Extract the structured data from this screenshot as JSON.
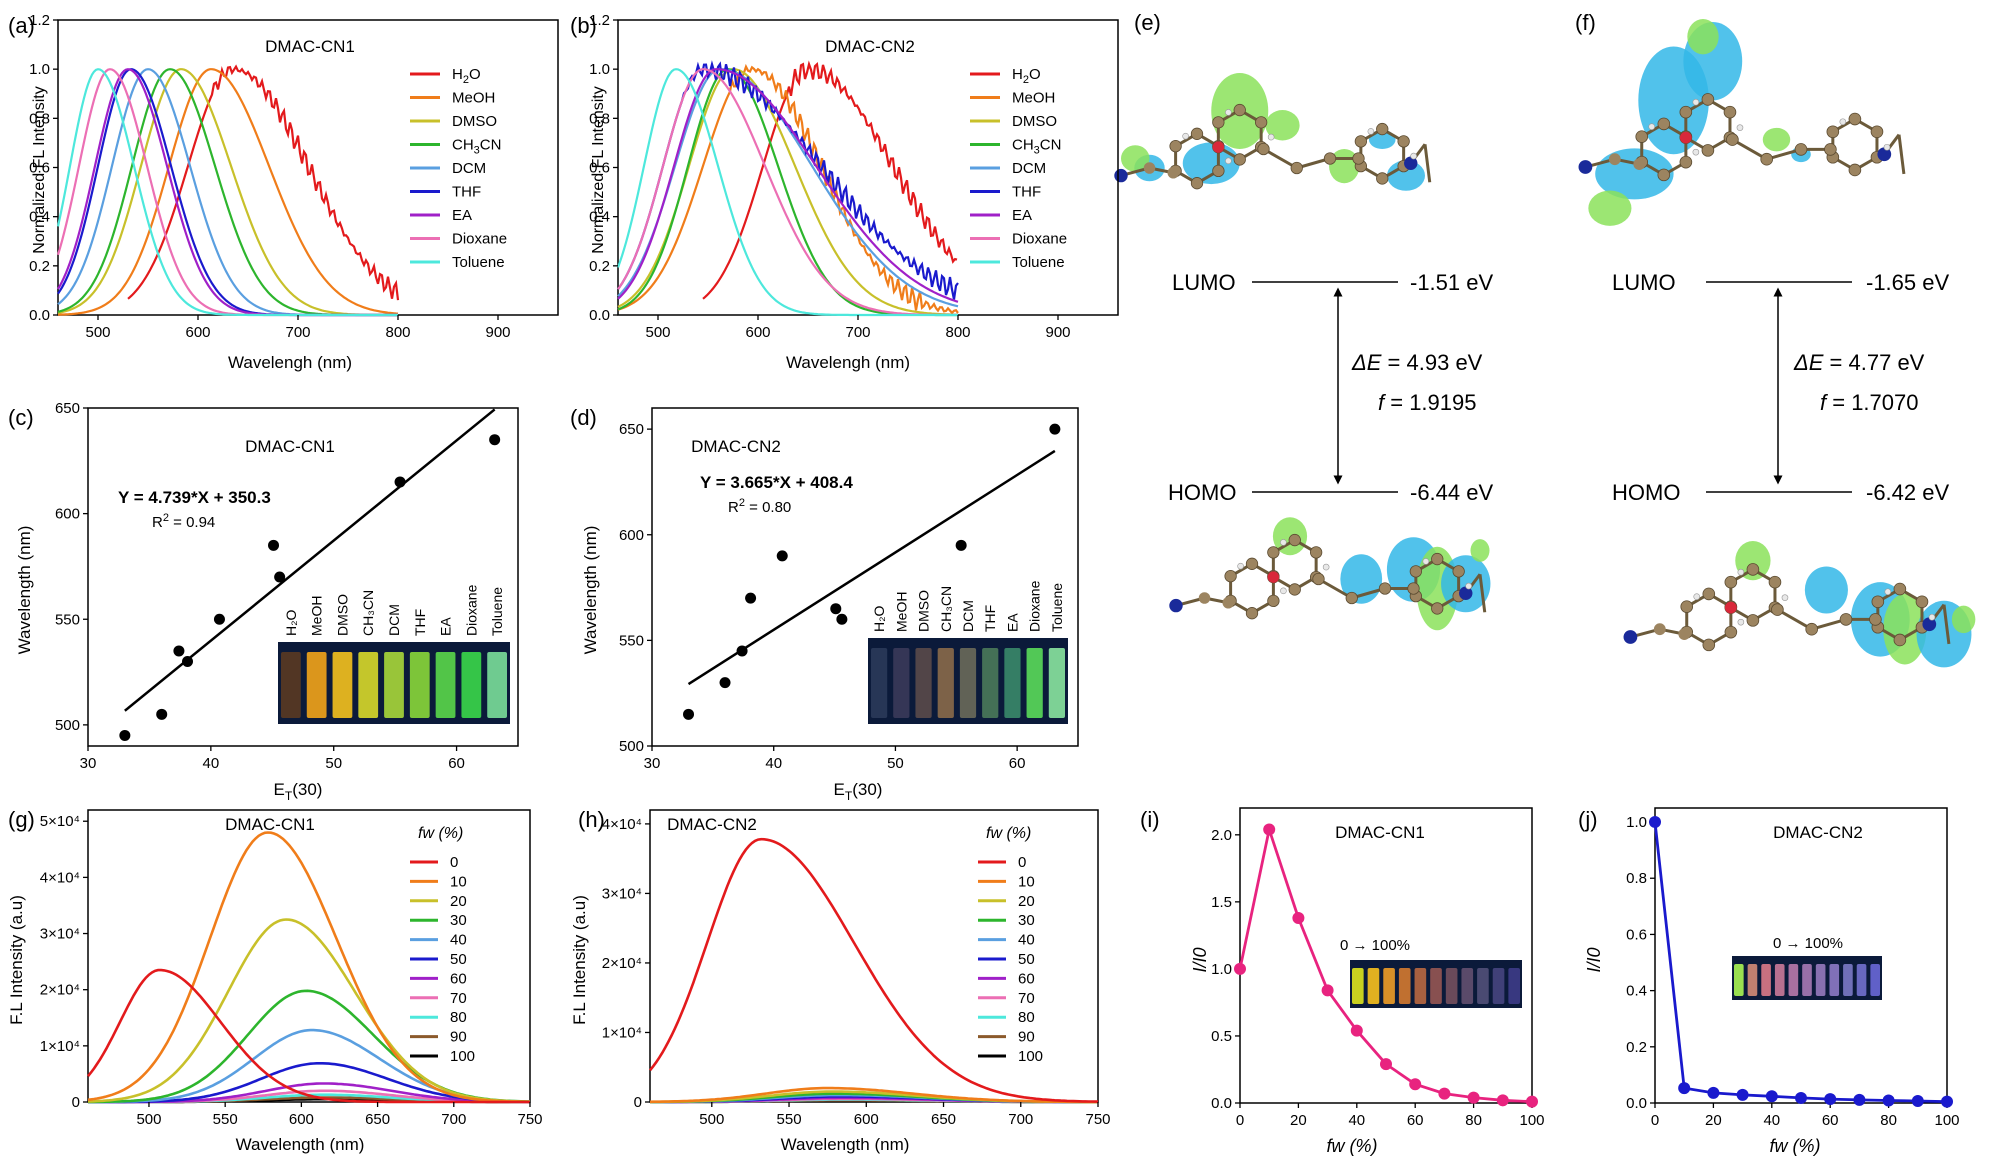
{
  "colors": {
    "H2O": "#e31a1c",
    "MeOH": "#f07d1a",
    "DMSO": "#c8c02a",
    "CH3CN": "#2db52d",
    "DCM": "#5a9fe0",
    "THF": "#1a1acd",
    "EA": "#a020c8",
    "Dioxane": "#ec6fb4",
    "Toluene": "#4de8dc",
    "fit": "#000000",
    "dot": "#000000",
    "i_line": "#e8237f",
    "j_line": "#1a1acd",
    "iso_blue": "#33b7e8",
    "iso_green": "#8be25a"
  },
  "panel_a": {
    "label": "(a)",
    "title": "DMAC-CN1",
    "xlabel": "Wavelengh (nm)",
    "ylabel": "Normalized FL Intensity",
    "xticks": [
      "500",
      "600",
      "700",
      "800",
      "900"
    ],
    "yticks": [
      "0.0",
      "0.2",
      "0.4",
      "0.6",
      "0.8",
      "1.0",
      "1.2"
    ],
    "legend": [
      "H2O",
      "MeOH",
      "DMSO",
      "CH3CN",
      "DCM",
      "THF",
      "EA",
      "Dioxane",
      "Toluene"
    ]
  },
  "panel_b": {
    "label": "(b)",
    "title": "DMAC-CN2",
    "xlabel": "Wavelengh (nm)",
    "ylabel": "Normalized FL Intensity",
    "xticks": [
      "500",
      "600",
      "700",
      "800",
      "900"
    ],
    "yticks": [
      "0.0",
      "0.2",
      "0.4",
      "0.6",
      "0.8",
      "1.0",
      "1.2"
    ],
    "legend": [
      "H2O",
      "MeOH",
      "DMSO",
      "CH3CN",
      "DCM",
      "THF",
      "EA",
      "Dioxane",
      "Toluene"
    ]
  },
  "panel_c": {
    "label": "(c)",
    "title": "DMAC-CN1",
    "equation": "Y = 4.739*X + 350.3",
    "r2": "R",
    "r2_sup": "2",
    "r2_val": " = 0.94",
    "xlabel": "E",
    "xlabel_sub": "T",
    "xlabel_tail": "(30)",
    "ylabel": "Wavelength (nm)",
    "xticks": [
      "30",
      "40",
      "50",
      "60"
    ],
    "yticks": [
      "500",
      "550",
      "600",
      "650"
    ],
    "vials": [
      "H2O",
      "MeOH",
      "DMSO",
      "CH3CN",
      "DCM",
      "THF",
      "EA",
      "Dioxane",
      "Toluene"
    ]
  },
  "panel_d": {
    "label": "(d)",
    "title": "DMAC-CN2",
    "equation": "Y = 3.665*X + 408.4",
    "r2": "R",
    "r2_sup": "2",
    "r2_val": " = 0.80",
    "xlabel": "E",
    "xlabel_sub": "T",
    "xlabel_tail": "(30)",
    "ylabel": "Wavelength (nm)",
    "xticks": [
      "30",
      "40",
      "50",
      "60"
    ],
    "yticks": [
      "500",
      "550",
      "600",
      "650"
    ],
    "vials": [
      "H2O",
      "MeOH",
      "DMSO",
      "CH3CN",
      "DCM",
      "THF",
      "EA",
      "Dioxane",
      "Toluene"
    ]
  },
  "panel_e": {
    "label": "(e)",
    "lumo": "LUMO",
    "lumo_e": "-1.51 eV",
    "homo": "HOMO",
    "homo_e": "-6.44 eV",
    "de_sym": "ΔE",
    "de_val": " = 4.93 eV",
    "f_sym": "f",
    "f_val": " = 1.9195"
  },
  "panel_f": {
    "label": "(f)",
    "lumo": "LUMO",
    "lumo_e": "-1.65 eV",
    "homo": "HOMO",
    "homo_e": "-6.42 eV",
    "de_sym": "ΔE",
    "de_val": " = 4.77 eV",
    "f_sym": "f",
    "f_val": " = 1.7070"
  },
  "panel_g": {
    "label": "(g)",
    "title": "DMAC-CN1",
    "xlabel": "Wavelength (nm)",
    "ylabel": "F.L Intensity (a.u)",
    "legend_title": "fw (%)",
    "legend": [
      "0",
      "10",
      "20",
      "30",
      "40",
      "50",
      "60",
      "70",
      "80",
      "90",
      "100"
    ],
    "xticks": [
      "500",
      "550",
      "600",
      "650",
      "700",
      "750"
    ],
    "yticks": [
      "0",
      "1×10⁴",
      "2×10⁴",
      "3×10⁴",
      "4×10⁴",
      "5×10⁴"
    ]
  },
  "panel_h": {
    "label": "(h)",
    "title": "DMAC-CN2",
    "xlabel": "Wavelength (nm)",
    "ylabel": "F.L Intensity (a.u)",
    "legend_title": "fw (%)",
    "legend": [
      "0",
      "10",
      "20",
      "30",
      "40",
      "50",
      "60",
      "70",
      "80",
      "90",
      "100"
    ],
    "xticks": [
      "500",
      "550",
      "600",
      "650",
      "700",
      "750"
    ],
    "yticks": [
      "0",
      "1×10⁴",
      "2×10⁴",
      "3×10⁴",
      "4×10⁴"
    ]
  },
  "panel_i": {
    "label": "(i)",
    "title": "DMAC-CN1",
    "inset": "0 → 100%",
    "xlabel": "fw (%)",
    "ylabel": "I/I0",
    "xticks": [
      "0",
      "20",
      "40",
      "60",
      "80",
      "100"
    ],
    "yticks": [
      "0.0",
      "0.5",
      "1.0",
      "1.5",
      "2.0"
    ]
  },
  "panel_j": {
    "label": "(j)",
    "title": "DMAC-CN2",
    "inset": "0 → 100%",
    "xlabel": "fw (%)",
    "ylabel": "I/I0",
    "xticks": [
      "0",
      "20",
      "40",
      "60",
      "80",
      "100"
    ],
    "yticks": [
      "0.0",
      "0.2",
      "0.4",
      "0.6",
      "0.8",
      "1.0"
    ]
  },
  "chart_data": [
    {
      "panel": "a",
      "type": "line",
      "title": "DMAC-CN1",
      "xlabel": "Wavelengh (nm)",
      "ylabel": "Normalized FL Intensity",
      "xlim": [
        460,
        960
      ],
      "ylim": [
        0,
        1.2
      ],
      "series": [
        {
          "name": "H2O",
          "peak": 635,
          "sigma_l": 45,
          "sigma_r": 75,
          "x_start": 530,
          "x_end": 800,
          "noisy": true
        },
        {
          "name": "MeOH",
          "peak": 613,
          "sigma_l": 42,
          "sigma_r": 58,
          "x_start": 460,
          "x_end": 800
        },
        {
          "name": "DMSO",
          "peak": 583,
          "sigma_l": 40,
          "sigma_r": 50,
          "x_start": 460,
          "x_end": 800
        },
        {
          "name": "CH3CN",
          "peak": 572,
          "sigma_l": 38,
          "sigma_r": 45,
          "x_start": 460,
          "x_end": 800
        },
        {
          "name": "DCM",
          "peak": 550,
          "sigma_l": 36,
          "sigma_r": 42,
          "x_start": 460,
          "x_end": 800
        },
        {
          "name": "THF",
          "peak": 533,
          "sigma_l": 33,
          "sigma_r": 40,
          "x_start": 460,
          "x_end": 800
        },
        {
          "name": "EA",
          "peak": 530,
          "sigma_l": 33,
          "sigma_r": 39,
          "x_start": 460,
          "x_end": 800
        },
        {
          "name": "Dioxane",
          "peak": 512,
          "sigma_l": 31,
          "sigma_r": 37,
          "x_start": 460,
          "x_end": 800
        },
        {
          "name": "Toluene",
          "peak": 500,
          "sigma_l": 28,
          "sigma_r": 36,
          "x_start": 460,
          "x_end": 800
        }
      ]
    },
    {
      "panel": "b",
      "type": "line",
      "title": "DMAC-CN2",
      "xlabel": "Wavelengh (nm)",
      "ylabel": "Normalized FL Intensity",
      "xlim": [
        460,
        960
      ],
      "ylim": [
        0,
        1.2
      ],
      "series": [
        {
          "name": "H2O",
          "peak": 650,
          "sigma_l": 45,
          "sigma_r": 85,
          "x_start": 545,
          "x_end": 800,
          "noisy": true
        },
        {
          "name": "MeOH",
          "peak": 593,
          "sigma_l": 48,
          "sigma_r": 70,
          "x_start": 460,
          "x_end": 800,
          "noisy": true
        },
        {
          "name": "DMSO",
          "peak": 575,
          "sigma_l": 44,
          "sigma_r": 62,
          "x_start": 460,
          "x_end": 800
        },
        {
          "name": "CH3CN",
          "peak": 570,
          "sigma_l": 40,
          "sigma_r": 50,
          "x_start": 460,
          "x_end": 800
        },
        {
          "name": "DCM",
          "peak": 562,
          "sigma_l": 45,
          "sigma_r": 92,
          "x_start": 460,
          "x_end": 800
        },
        {
          "name": "THF",
          "peak": 545,
          "sigma_l": 40,
          "sigma_r": 118,
          "x_start": 460,
          "x_end": 800,
          "noisy": true
        },
        {
          "name": "EA",
          "peak": 558,
          "sigma_l": 42,
          "sigma_r": 100,
          "x_start": 460,
          "x_end": 800
        },
        {
          "name": "Dioxane",
          "peak": 545,
          "sigma_l": 40,
          "sigma_r": 62,
          "x_start": 460,
          "x_end": 800
        },
        {
          "name": "Toluene",
          "peak": 518,
          "sigma_l": 32,
          "sigma_r": 42,
          "x_start": 460,
          "x_end": 800
        }
      ]
    },
    {
      "panel": "c",
      "type": "scatter",
      "title": "DMAC-CN1",
      "xlabel": "ET(30)",
      "ylabel": "Wavelength (nm)",
      "xlim": [
        30,
        65
      ],
      "ylim": [
        490,
        650
      ],
      "points": [
        [
          33,
          495
        ],
        [
          36,
          505
        ],
        [
          37.4,
          535
        ],
        [
          38.1,
          530
        ],
        [
          40.7,
          550
        ],
        [
          45.1,
          585
        ],
        [
          45.6,
          570
        ],
        [
          55.4,
          615
        ],
        [
          63.1,
          635
        ]
      ],
      "fit": {
        "slope": 4.739,
        "intercept": 350.3,
        "x_range": [
          33,
          63.1
        ]
      }
    },
    {
      "panel": "d",
      "type": "scatter",
      "title": "DMAC-CN2",
      "xlabel": "ET(30)",
      "ylabel": "Wavelength (nm)",
      "xlim": [
        30,
        65
      ],
      "ylim": [
        500,
        660
      ],
      "points": [
        [
          33,
          515
        ],
        [
          36,
          530
        ],
        [
          37.4,
          545
        ],
        [
          38.1,
          570
        ],
        [
          40.7,
          590
        ],
        [
          45.1,
          565
        ],
        [
          45.6,
          560
        ],
        [
          55.4,
          595
        ],
        [
          63.1,
          650
        ]
      ],
      "fit": {
        "slope": 3.665,
        "intercept": 408.4,
        "x_range": [
          33,
          63.1
        ]
      }
    },
    {
      "panel": "g",
      "type": "line",
      "title": "DMAC-CN1",
      "xlabel": "Wavelength (nm)",
      "ylabel": "F.L Intensity (a.u)",
      "xlim": [
        460,
        750
      ],
      "ylim": [
        0,
        52000
      ],
      "series": [
        {
          "name": "0",
          "peak": 507,
          "amp": 23500,
          "sigma_l": 26,
          "sigma_r": 40
        },
        {
          "name": "10",
          "peak": 578,
          "amp": 48000,
          "sigma_l": 38,
          "sigma_r": 45
        },
        {
          "name": "20",
          "peak": 590,
          "amp": 32500,
          "sigma_l": 38,
          "sigma_r": 45
        },
        {
          "name": "30",
          "peak": 603,
          "amp": 19800,
          "sigma_l": 38,
          "sigma_r": 44
        },
        {
          "name": "40",
          "peak": 607,
          "amp": 12800,
          "sigma_l": 38,
          "sigma_r": 44
        },
        {
          "name": "50",
          "peak": 612,
          "amp": 6900,
          "sigma_l": 38,
          "sigma_r": 44
        },
        {
          "name": "60",
          "peak": 615,
          "amp": 3300,
          "sigma_l": 38,
          "sigma_r": 44
        },
        {
          "name": "70",
          "peak": 615,
          "amp": 2000,
          "sigma_l": 38,
          "sigma_r": 44
        },
        {
          "name": "80",
          "peak": 615,
          "amp": 1300,
          "sigma_l": 38,
          "sigma_r": 44
        },
        {
          "name": "90",
          "peak": 615,
          "amp": 800,
          "sigma_l": 38,
          "sigma_r": 44
        },
        {
          "name": "100",
          "peak": 615,
          "amp": 500,
          "sigma_l": 38,
          "sigma_r": 44
        }
      ]
    },
    {
      "panel": "h",
      "type": "line",
      "title": "DMAC-CN2",
      "xlabel": "Wavelength (nm)",
      "ylabel": "F.L Intensity (a.u)",
      "xlim": [
        460,
        750
      ],
      "ylim": [
        0,
        42000
      ],
      "series": [
        {
          "name": "0",
          "peak": 532,
          "amp": 37800,
          "sigma_l": 35,
          "sigma_r": 60
        },
        {
          "name": "10",
          "peak": 575,
          "amp": 2000,
          "sigma_l": 40,
          "sigma_r": 55
        },
        {
          "name": "20",
          "peak": 578,
          "amp": 1500,
          "sigma_l": 40,
          "sigma_r": 55
        },
        {
          "name": "30",
          "peak": 580,
          "amp": 1200,
          "sigma_l": 40,
          "sigma_r": 55
        },
        {
          "name": "40",
          "peak": 582,
          "amp": 1000,
          "sigma_l": 40,
          "sigma_r": 55
        },
        {
          "name": "50",
          "peak": 584,
          "amp": 800,
          "sigma_l": 40,
          "sigma_r": 55
        },
        {
          "name": "60",
          "peak": 585,
          "amp": 600,
          "sigma_l": 40,
          "sigma_r": 55
        },
        {
          "name": "70",
          "peak": 585,
          "amp": 450,
          "sigma_l": 40,
          "sigma_r": 55
        },
        {
          "name": "80",
          "peak": 585,
          "amp": 350,
          "sigma_l": 40,
          "sigma_r": 55
        },
        {
          "name": "90",
          "peak": 585,
          "amp": 250,
          "sigma_l": 40,
          "sigma_r": 55
        },
        {
          "name": "100",
          "peak": 585,
          "amp": 200,
          "sigma_l": 40,
          "sigma_r": 55
        }
      ]
    },
    {
      "panel": "i",
      "type": "line",
      "title": "DMAC-CN1",
      "xlabel": "fw (%)",
      "ylabel": "I/I0",
      "xlim": [
        0,
        100
      ],
      "ylim": [
        0,
        2.2
      ],
      "x": [
        0,
        10,
        20,
        30,
        40,
        50,
        60,
        70,
        80,
        90,
        100
      ],
      "y": [
        1.0,
        2.04,
        1.38,
        0.84,
        0.54,
        0.29,
        0.14,
        0.07,
        0.04,
        0.02,
        0.01
      ]
    },
    {
      "panel": "j",
      "type": "line",
      "title": "DMAC-CN2",
      "xlabel": "fw (%)",
      "ylabel": "I/I0",
      "xlim": [
        0,
        100
      ],
      "ylim": [
        0,
        1.05
      ],
      "x": [
        0,
        10,
        20,
        30,
        40,
        50,
        60,
        70,
        80,
        90,
        100
      ],
      "y": [
        1.0,
        0.053,
        0.036,
        0.029,
        0.024,
        0.018,
        0.014,
        0.011,
        0.009,
        0.007,
        0.005
      ]
    }
  ]
}
